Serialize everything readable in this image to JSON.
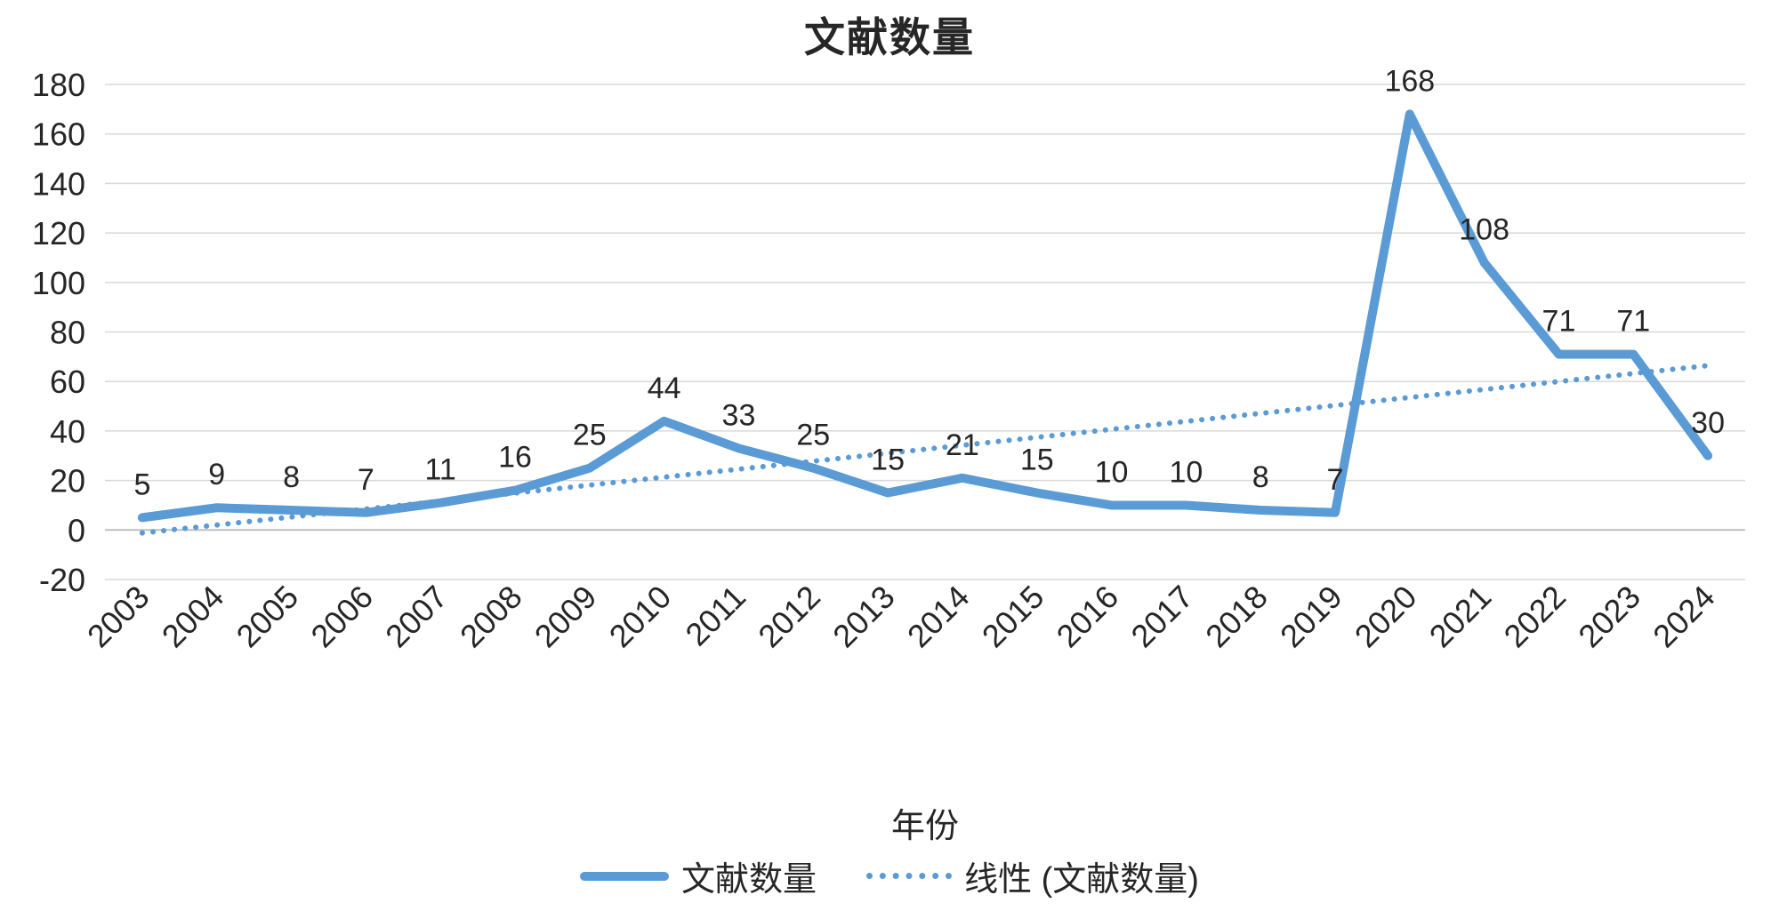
{
  "chart_data": {
    "type": "line",
    "title": "文献数量",
    "xlabel": "年份",
    "ylabel": "",
    "categories": [
      "2003",
      "2004",
      "2005",
      "2006",
      "2007",
      "2008",
      "2009",
      "2010",
      "2011",
      "2012",
      "2013",
      "2014",
      "2015",
      "2016",
      "2017",
      "2018",
      "2019",
      "2020",
      "2021",
      "2022",
      "2023",
      "2024"
    ],
    "series": [
      {
        "name": "文献数量",
        "values": [
          5,
          9,
          8,
          7,
          11,
          16,
          25,
          44,
          33,
          25,
          15,
          21,
          15,
          10,
          10,
          8,
          7,
          168,
          108,
          71,
          71,
          30
        ],
        "color": "#5B9BD5",
        "style": "solid",
        "data_labels": true
      }
    ],
    "trendline": {
      "name": "线性 (文献数量)",
      "type": "linear",
      "slope": 3.22,
      "intercept": -1.2,
      "color": "#5B9BD5",
      "style": "dotted"
    },
    "ylim": [
      -20,
      180
    ],
    "ytick_step": 20,
    "grid": true,
    "legend_position": "bottom",
    "x_label_rotation_deg": -45
  },
  "colors": {
    "series": "#5B9BD5",
    "grid": "#d9d9d9",
    "axis": "#bfbfbf",
    "text": "#262626",
    "title": "#262626",
    "background": "#ffffff"
  }
}
